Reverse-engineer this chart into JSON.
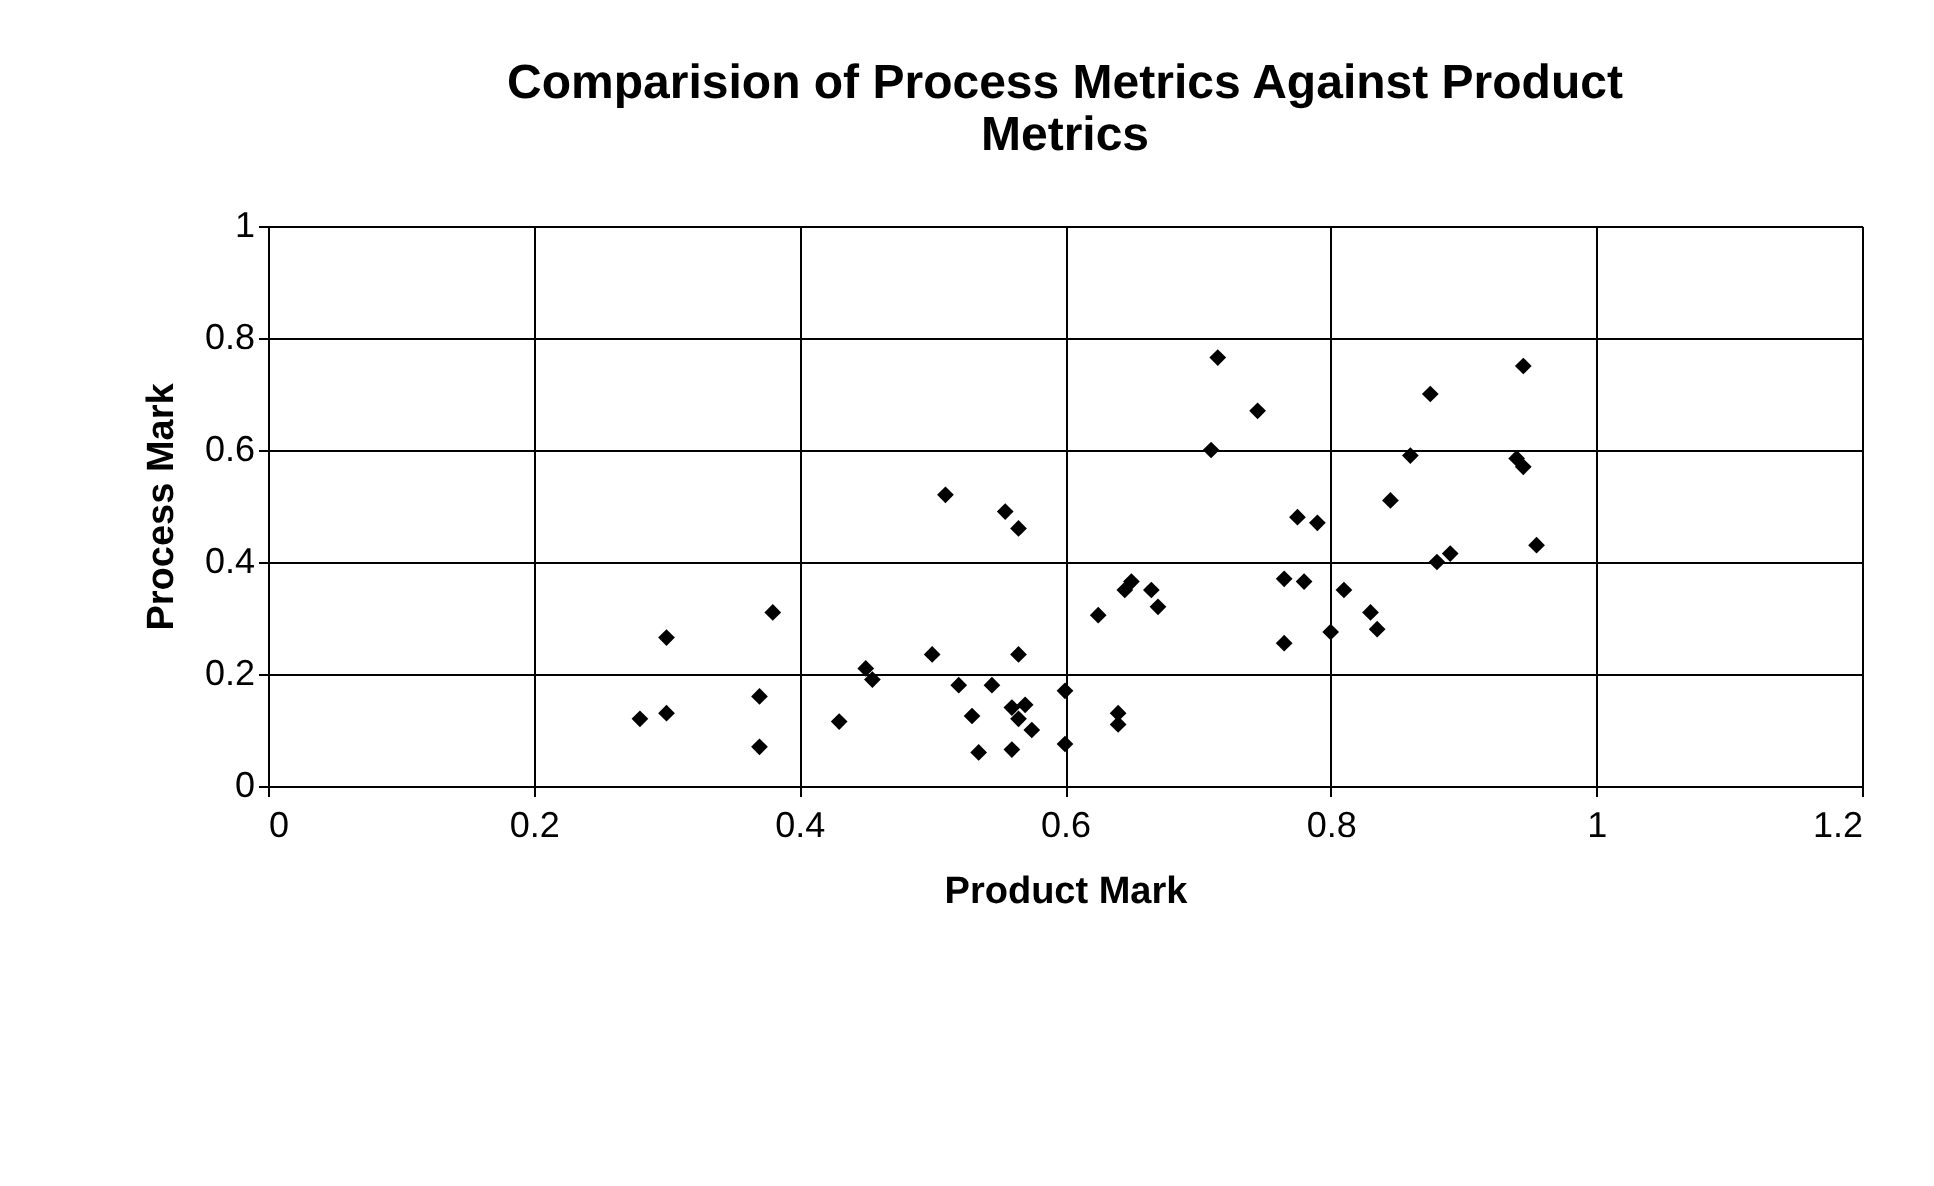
{
  "chart_data": {
    "type": "scatter",
    "title": "Comparision of Process Metrics Against Product Metrics",
    "xlabel": "Product Mark",
    "ylabel": "Process Mark",
    "x": [
      0.28,
      0.3,
      0.3,
      0.37,
      0.37,
      0.38,
      0.43,
      0.45,
      0.455,
      0.5,
      0.51,
      0.52,
      0.53,
      0.535,
      0.545,
      0.555,
      0.56,
      0.56,
      0.565,
      0.565,
      0.565,
      0.57,
      0.575,
      0.6,
      0.6,
      0.625,
      0.64,
      0.64,
      0.645,
      0.65,
      0.665,
      0.67,
      0.71,
      0.715,
      0.745,
      0.765,
      0.765,
      0.775,
      0.78,
      0.79,
      0.8,
      0.81,
      0.83,
      0.835,
      0.845,
      0.86,
      0.875,
      0.88,
      0.89,
      0.94,
      0.945,
      0.945,
      0.955
    ],
    "values": [
      0.12,
      0.265,
      0.13,
      0.16,
      0.07,
      0.31,
      0.115,
      0.21,
      0.19,
      0.235,
      0.52,
      0.18,
      0.125,
      0.06,
      0.18,
      0.49,
      0.14,
      0.065,
      0.46,
      0.235,
      0.12,
      0.145,
      0.1,
      0.17,
      0.075,
      0.305,
      0.13,
      0.11,
      0.35,
      0.365,
      0.35,
      0.32,
      0.6,
      0.765,
      0.67,
      0.255,
      0.37,
      0.48,
      0.365,
      0.47,
      0.275,
      0.35,
      0.31,
      0.28,
      0.51,
      0.59,
      0.7,
      0.4,
      0.415,
      0.585,
      0.57,
      0.75,
      0.43
    ],
    "color": "#000000",
    "marker": "diamond",
    "xlim": [
      0,
      1.2
    ],
    "xticks": [
      0,
      0.2,
      0.4,
      0.6,
      0.8,
      1,
      1.2
    ],
    "ylim": [
      0,
      1
    ],
    "yticks": [
      0,
      0.2,
      0.4,
      0.6,
      0.8,
      1
    ],
    "grid": true
  }
}
